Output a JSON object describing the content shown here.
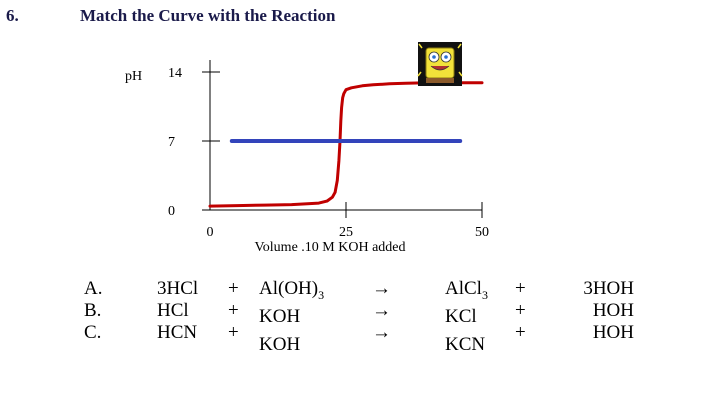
{
  "header": {
    "number": "6.",
    "title": "Match the Curve with the Reaction"
  },
  "chart_data": {
    "type": "line",
    "ylabel": "pH",
    "xlabel": "Volume .10 M KOH added",
    "xlim": [
      0,
      50
    ],
    "ylim": [
      0,
      14
    ],
    "xticks": [
      "0",
      "25",
      "50"
    ],
    "yticks": [
      "0",
      "7",
      "14"
    ],
    "series": [
      {
        "color": "#c00000",
        "x": [
          0,
          5,
          10,
          15,
          20,
          21.5,
          22.5,
          23,
          23.4,
          23.7,
          23.9,
          24.05,
          24.2,
          24.4,
          24.6,
          25,
          26,
          28,
          30,
          33,
          36,
          40,
          45,
          50
        ],
        "y": [
          0.4,
          0.45,
          0.5,
          0.55,
          0.7,
          0.9,
          1.3,
          1.8,
          3.0,
          5.0,
          7.0,
          9.0,
          10.4,
          11.4,
          11.8,
          12.2,
          12.4,
          12.6,
          12.7,
          12.8,
          12.85,
          12.9,
          12.9,
          12.9
        ]
      },
      {
        "color": "#3344bb",
        "x": [
          4,
          46
        ],
        "y": [
          7,
          7
        ]
      }
    ]
  },
  "reactions": [
    {
      "letter": "A.",
      "acid": "3HCl",
      "plus1": "+",
      "base": "Al(OH)",
      "base_sub": "3",
      "arrow": "→",
      "salt": "AlCl",
      "salt_sub": "3",
      "plus2": "+",
      "water": "3HOH"
    },
    {
      "letter": "B.",
      "acid": "HCl",
      "plus1": "+",
      "base": "KOH",
      "base_sub": "",
      "arrow": "→",
      "salt": "KCl",
      "salt_sub": "",
      "plus2": "+",
      "water": "HOH"
    },
    {
      "letter": "C.",
      "acid": "HCN",
      "plus1": "+",
      "base": "KOH",
      "base_sub": "",
      "arrow": "→",
      "salt": "KCN",
      "salt_sub": "",
      "plus2": "+",
      "water": "HOH"
    }
  ],
  "image": {
    "icon": "spongebob-icon"
  }
}
